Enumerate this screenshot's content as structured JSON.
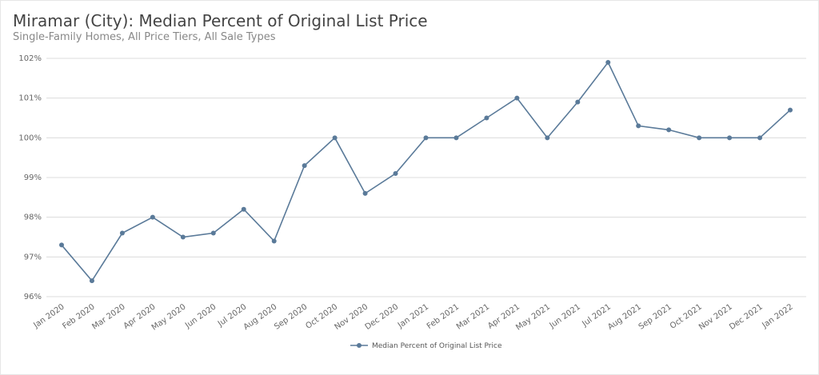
{
  "chart_data": {
    "type": "line",
    "title": "Miramar (City): Median Percent of Original List Price",
    "subtitle": "Single-Family Homes, All Price Tiers, All Sale Types",
    "categories": [
      "Jan 2020",
      "Feb 2020",
      "Mar 2020",
      "Apr 2020",
      "May 2020",
      "Jun 2020",
      "Jul 2020",
      "Aug 2020",
      "Sep 2020",
      "Oct 2020",
      "Nov 2020",
      "Dec 2020",
      "Jan 2021",
      "Feb 2021",
      "Mar 2021",
      "Apr 2021",
      "May 2021",
      "Jun 2021",
      "Jul 2021",
      "Aug 2021",
      "Sep 2021",
      "Oct 2021",
      "Nov 2021",
      "Dec 2021",
      "Jan 2022"
    ],
    "series": [
      {
        "name": "Median Percent of Original List Price",
        "color": "#5a7a99",
        "values": [
          97.3,
          96.4,
          97.6,
          98.0,
          97.5,
          97.6,
          98.2,
          97.4,
          99.3,
          100.0,
          98.6,
          99.1,
          100.0,
          100.0,
          100.5,
          101.0,
          100.0,
          100.9,
          101.9,
          100.3,
          100.2,
          100.0,
          100.0,
          100.0,
          100.7
        ]
      }
    ],
    "ylim": [
      96,
      102
    ],
    "yticks": [
      96,
      97,
      98,
      99,
      100,
      101,
      102
    ],
    "ytick_labels": [
      "96%",
      "97%",
      "98%",
      "99%",
      "100%",
      "101%",
      "102%"
    ],
    "grid": true,
    "legend": "bottom-center",
    "xlabel": "",
    "ylabel": ""
  }
}
